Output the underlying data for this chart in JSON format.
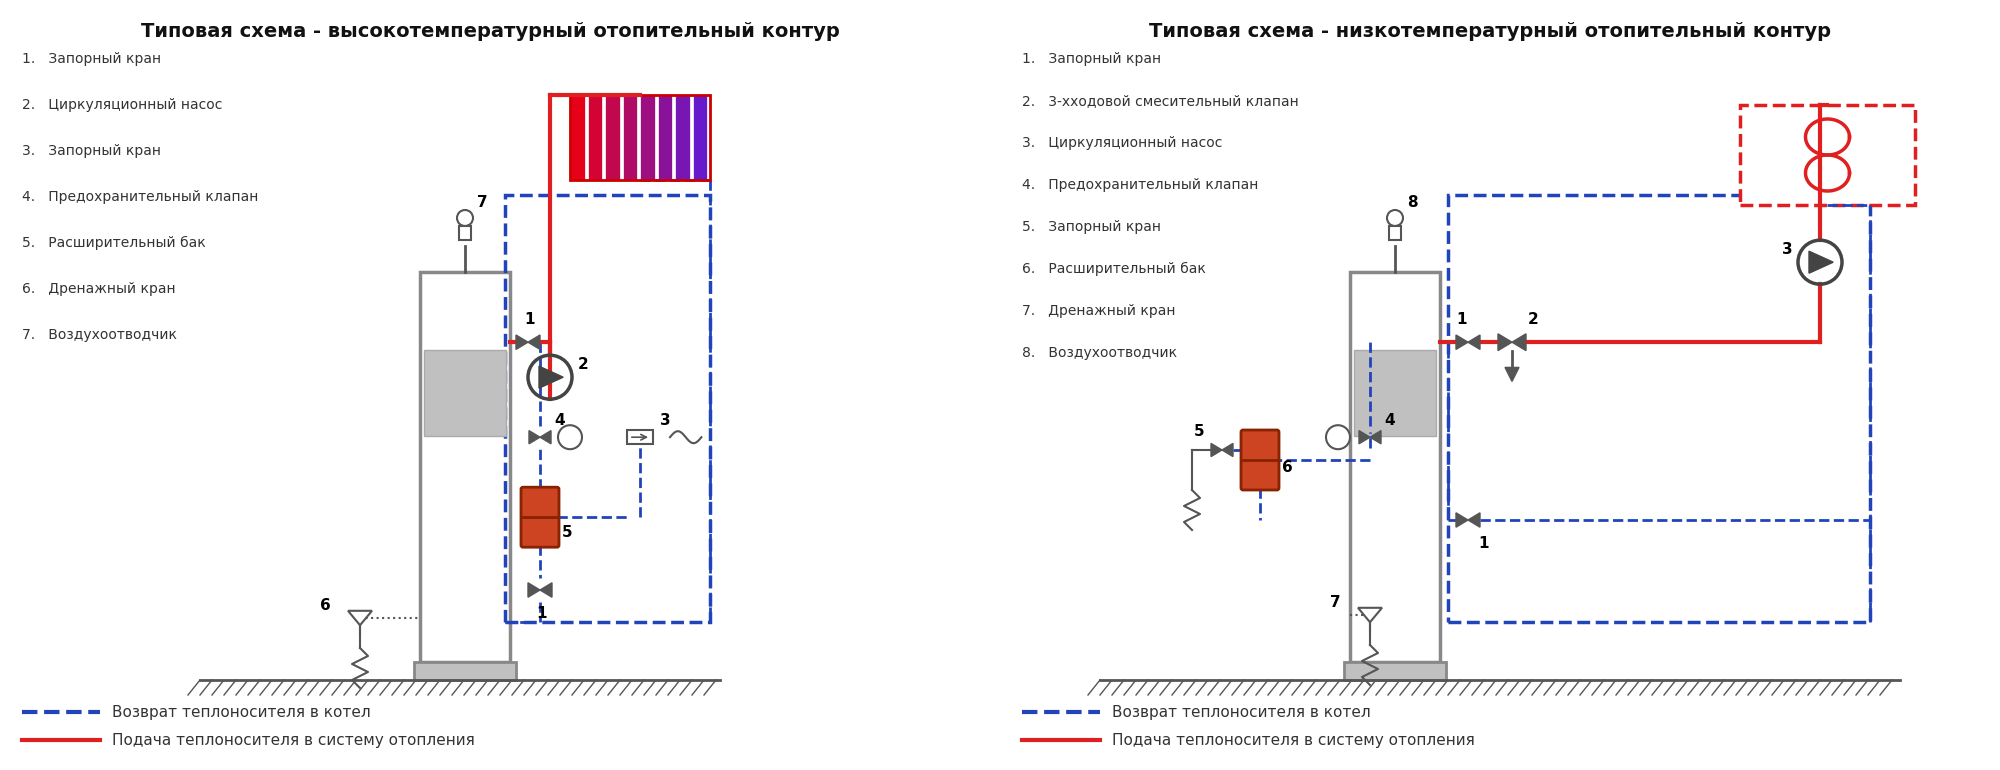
{
  "title_left": "Типовая схема - высокотемпературный отопительный контур",
  "title_right": "Типовая схема - низкотемпературный отопительный контур",
  "title_fontsize": 14,
  "bg_color": "#ffffff",
  "red": "#e02020",
  "blue_dash": "#2244bb",
  "boiler_fill": "#e8e8e8",
  "boiler_inner": "#c0c0c0",
  "tank_fill": "#cc4422",
  "ground_color": "#555555",
  "legend_dashed": "Возврат теплоносителя в котел",
  "legend_solid": "Подача теплоносителя в систему отопления",
  "left_items": [
    "Запорный кран",
    "Циркуляционный насос",
    "Запорный кран",
    "Предохранительный клапан",
    "Расширительный бак",
    "Дренажный кран",
    "Воздухоотводчик"
  ],
  "right_items": [
    "Запорный кран",
    "3-хходовой смесительный клапан",
    "Циркуляционный насос",
    "Предохранительный клапан",
    "Запорный кран",
    "Расширительный бак",
    "Дренажный кран",
    "Воздухоотводчик"
  ]
}
